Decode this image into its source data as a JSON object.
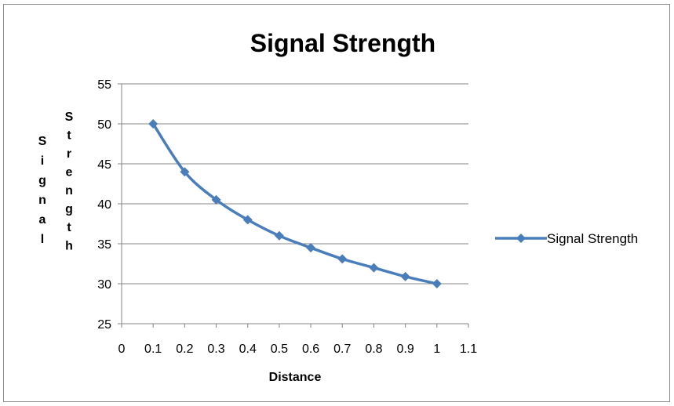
{
  "chart_data": {
    "type": "line",
    "title": "Signal Strength",
    "xlabel": "Distance",
    "ylabel_left": "Signal",
    "ylabel_right": "Strength",
    "xlim": [
      0,
      1.1
    ],
    "ylim": [
      25,
      55
    ],
    "x_ticks": [
      "0",
      "0.1",
      "0.2",
      "0.3",
      "0.4",
      "0.5",
      "0.6",
      "0.7",
      "0.8",
      "0.9",
      "1",
      "1.1"
    ],
    "y_ticks": [
      "25",
      "30",
      "35",
      "40",
      "45",
      "50",
      "55"
    ],
    "grid": true,
    "legend_position": "right",
    "colors": {
      "series": "#4a7ebb",
      "grid": "#868686",
      "axis": "#868686"
    },
    "series": [
      {
        "name": "Signal Strength",
        "marker": "diamond",
        "smooth": true,
        "x": [
          0.1,
          0.2,
          0.3,
          0.4,
          0.5,
          0.6,
          0.7,
          0.8,
          0.9,
          1.0
        ],
        "values": [
          50,
          44,
          40.5,
          38,
          36,
          34.5,
          33.1,
          32,
          30.9,
          30
        ]
      }
    ]
  }
}
